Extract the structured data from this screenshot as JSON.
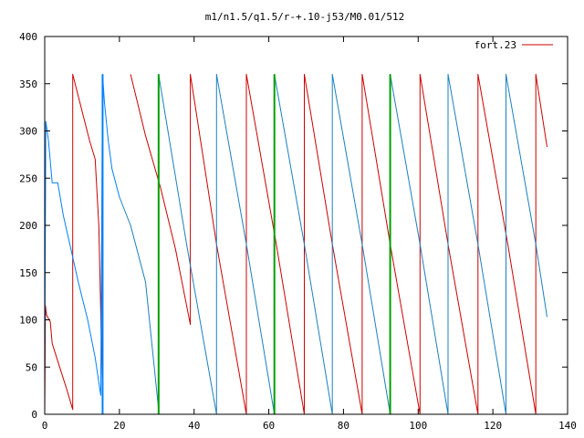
{
  "chart_data": {
    "type": "line",
    "title": "m1/n1.5/q1.5/r-+.10-j53/M0.01/512",
    "xlabel": "",
    "ylabel": "",
    "xlim": [
      0,
      140
    ],
    "ylim": [
      0,
      400
    ],
    "x_ticks": [
      0,
      20,
      40,
      60,
      80,
      100,
      120,
      140
    ],
    "y_ticks": [
      0,
      50,
      100,
      150,
      200,
      250,
      300,
      350,
      400
    ],
    "grid": false,
    "legend": {
      "placement": "top-right",
      "entries": [
        "fort.23"
      ]
    },
    "colors": {
      "red": "#cc0000",
      "blue": "#0080ff",
      "steelblue": "#1a7fc0",
      "green": "#00a000"
    },
    "series": [
      {
        "name": "fort.23",
        "color": "#cc0000",
        "segments": [
          [
            [
              0,
              190
            ],
            [
              0,
              0
            ],
            [
              0.2,
              115
            ],
            [
              0.5,
              105
            ],
            [
              1.5,
              98
            ],
            [
              2,
              75
            ],
            [
              4,
              50
            ],
            [
              6,
              25
            ],
            [
              7.5,
              5
            ],
            [
              7.5,
              360
            ],
            [
              12,
              290
            ],
            [
              13.5,
              270
            ],
            [
              14.5,
              200
            ],
            [
              15.5,
              20
            ]
          ],
          [
            [
              23,
              360
            ],
            [
              27,
              295
            ],
            [
              31,
              240
            ],
            [
              35,
              175
            ],
            [
              39,
              95
            ],
            [
              39,
              360
            ],
            [
              46,
              180
            ],
            [
              54,
              0
            ],
            [
              54,
              360
            ],
            [
              62,
              180
            ],
            [
              69.5,
              0
            ],
            [
              69.5,
              360
            ],
            [
              77,
              180
            ],
            [
              85,
              0
            ],
            [
              85,
              360
            ],
            [
              92.5,
              180
            ],
            [
              100.5,
              0
            ],
            [
              100.5,
              360
            ],
            [
              108,
              180
            ],
            [
              116,
              0
            ],
            [
              116,
              360
            ],
            [
              124,
              180
            ],
            [
              131.5,
              0
            ],
            [
              131.5,
              360
            ],
            [
              134.5,
              283
            ]
          ]
        ]
      },
      {
        "color": "#0080ff",
        "segments": [
          [
            [
              0,
              30
            ],
            [
              0.3,
              310
            ],
            [
              1,
              290
            ],
            [
              2,
              245
            ],
            [
              3.5,
              245
            ],
            [
              5,
              210
            ],
            [
              7,
              175
            ],
            [
              9,
              140
            ],
            [
              11.5,
              100
            ],
            [
              13.5,
              60
            ],
            [
              15,
              20
            ],
            [
              15.5,
              360
            ],
            [
              16,
              330
            ],
            [
              17,
              290
            ],
            [
              18,
              260
            ],
            [
              20,
              230
            ]
          ]
        ]
      },
      {
        "color": "#1a7fc0",
        "segments": [
          [
            [
              20,
              230
            ],
            [
              23,
              200
            ],
            [
              27,
              140
            ],
            [
              30.5,
              5
            ],
            [
              30.5,
              360
            ],
            [
              38,
              180
            ],
            [
              46,
              0
            ],
            [
              46,
              360
            ],
            [
              54,
              180
            ],
            [
              61.5,
              0
            ],
            [
              61.5,
              360
            ],
            [
              69.5,
              180
            ],
            [
              77,
              0
            ],
            [
              77,
              360
            ],
            [
              85,
              180
            ],
            [
              92.5,
              0
            ],
            [
              92.5,
              360
            ],
            [
              100.5,
              180
            ],
            [
              108,
              0
            ],
            [
              108,
              360
            ],
            [
              116,
              180
            ],
            [
              123.5,
              0
            ],
            [
              123.5,
              360
            ],
            [
              131.5,
              180
            ],
            [
              134.5,
              103
            ]
          ]
        ]
      }
    ],
    "vertical_markers": [
      {
        "x": 15.5,
        "color": "#0080ff"
      },
      {
        "x": 30.5,
        "color": "#00a000"
      },
      {
        "x": 61.5,
        "color": "#00a000"
      },
      {
        "x": 92.5,
        "color": "#00a000"
      }
    ]
  }
}
